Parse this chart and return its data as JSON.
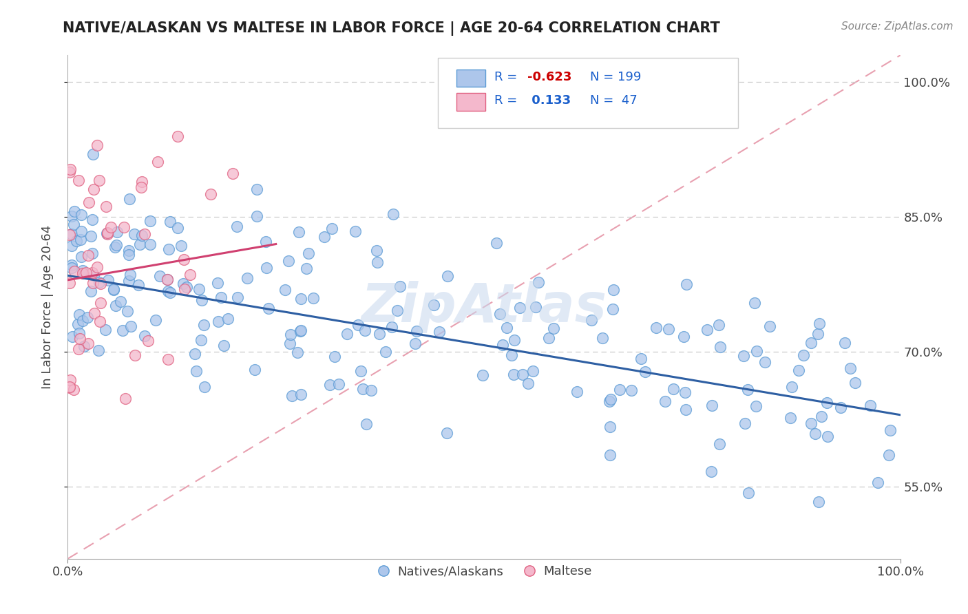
{
  "title": "NATIVE/ALASKAN VS MALTESE IN LABOR FORCE | AGE 20-64 CORRELATION CHART",
  "source_text": "Source: ZipAtlas.com",
  "ylabel": "In Labor Force | Age 20-64",
  "xlim": [
    0,
    100
  ],
  "ylim": [
    47,
    103
  ],
  "yticks": [
    55,
    70,
    85,
    100
  ],
  "ytick_labels": [
    "55.0%",
    "70.0%",
    "85.0%",
    "100.0%"
  ],
  "xtick_labels": [
    "0.0%",
    "100.0%"
  ],
  "blue_R": -0.623,
  "blue_N": 199,
  "pink_R": 0.133,
  "pink_N": 47,
  "blue_fill_color": "#adc6eb",
  "pink_fill_color": "#f4b8cc",
  "blue_edge_color": "#5b9bd5",
  "pink_edge_color": "#e06080",
  "blue_line_color": "#2e5fa3",
  "pink_line_color": "#d04070",
  "ref_line_color": "#e8a0b0",
  "legend_text_color": "#1a5fcc",
  "legend_R_color": "#cc0000",
  "watermark": "ZipAtlas",
  "blue_trend_start_y": 78.5,
  "blue_trend_end_y": 63.0,
  "pink_trend_start_x": 0,
  "pink_trend_start_y": 78.0,
  "pink_trend_end_x": 25,
  "pink_trend_end_y": 82.0,
  "ref_line_x0": 0,
  "ref_line_y0": 47,
  "ref_line_x1": 100,
  "ref_line_y1": 103
}
